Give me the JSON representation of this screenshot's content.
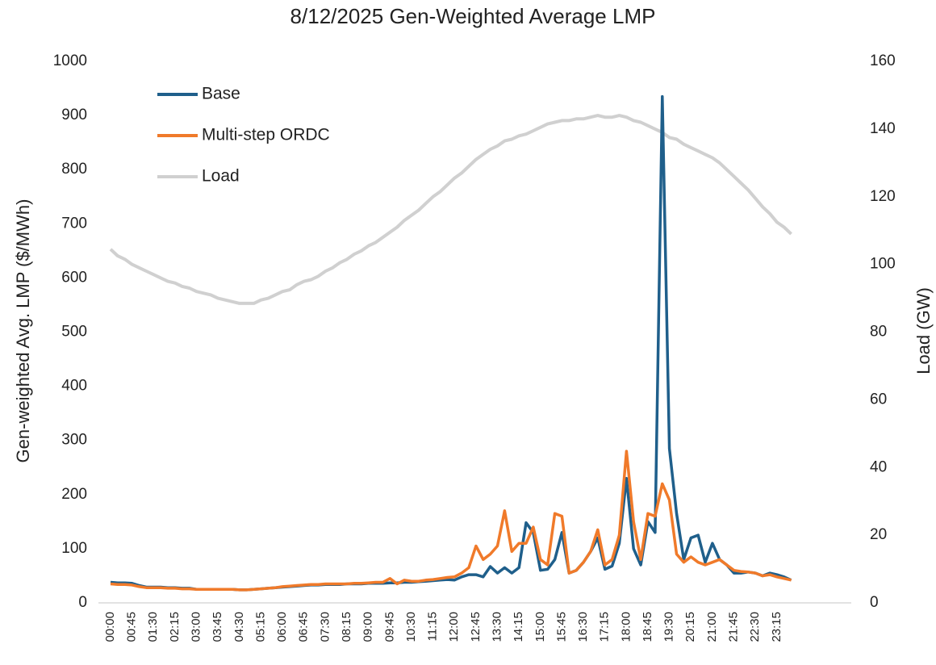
{
  "chart_data": {
    "type": "line",
    "title": "8/12/2025 Gen-Weighted Average LMP",
    "y_label": "Gen-weighted Avg. LMP ($/MWh)",
    "y2_label": "Load (GW)",
    "categories": [
      "00:00",
      null,
      null,
      "00:45",
      null,
      null,
      "01:30",
      null,
      null,
      "02:15",
      null,
      null,
      "03:00",
      null,
      null,
      "03:45",
      null,
      null,
      "04:30",
      null,
      null,
      "05:15",
      null,
      null,
      "06:00",
      null,
      null,
      "06:45",
      null,
      null,
      "07:30",
      null,
      null,
      "08:15",
      null,
      null,
      "09:00",
      null,
      null,
      "09:45",
      null,
      null,
      "10:30",
      null,
      null,
      "11:15",
      null,
      null,
      "12:00",
      null,
      null,
      "12:45",
      null,
      null,
      "13:30",
      null,
      null,
      "14:15",
      null,
      null,
      "15:00",
      null,
      null,
      "15:45",
      null,
      null,
      "16:30",
      null,
      null,
      "17:15",
      null,
      null,
      "18:00",
      null,
      null,
      "18:45",
      null,
      null,
      "19:30",
      null,
      null,
      "20:15",
      null,
      null,
      "21:00",
      null,
      null,
      "21:45",
      null,
      null,
      "22:30",
      null,
      null,
      "23:15",
      null,
      null
    ],
    "series": [
      {
        "name": "Load",
        "color": "#d0d0d0",
        "axis": "y2",
        "values": [
          104.5,
          102.5,
          101.5,
          100,
          99,
          98,
          97,
          96,
          95,
          94.5,
          93.5,
          93,
          92,
          91.5,
          91,
          90,
          89.5,
          89,
          88.5,
          88.5,
          88.5,
          89.5,
          90,
          91,
          92,
          92.5,
          94,
          95,
          95.5,
          96.5,
          98,
          99,
          100.5,
          101.5,
          103,
          104,
          105.5,
          106.5,
          108,
          109.5,
          111,
          113,
          114.5,
          116,
          118,
          120,
          121.5,
          123.5,
          125.5,
          127,
          129,
          131,
          132.5,
          134,
          135,
          136.5,
          137,
          138,
          138.5,
          139.5,
          140.5,
          141.5,
          142,
          142.5,
          142.5,
          143,
          143,
          143.5,
          144,
          143.5,
          143.5,
          144,
          143.5,
          142.5,
          142,
          141,
          140,
          139,
          137.5,
          137,
          135.5,
          134.5,
          133.5,
          132.5,
          131.5,
          130,
          128,
          126,
          124,
          122,
          119.5,
          117,
          115,
          112.5,
          111,
          109
        ]
      },
      {
        "name": "Base",
        "color": "#1f5f8b",
        "values": [
          38,
          37,
          37,
          36,
          32,
          29,
          29,
          29,
          28,
          28,
          27,
          27,
          25,
          25,
          25,
          25,
          25,
          25,
          24,
          24,
          25,
          26,
          27,
          28,
          29,
          30,
          31,
          32,
          33,
          33,
          34,
          34,
          34,
          35,
          35,
          35,
          36,
          36,
          36,
          37,
          37,
          38,
          38,
          39,
          40,
          41,
          42,
          43,
          42,
          48,
          52,
          52,
          48,
          67,
          55,
          65,
          55,
          65,
          148,
          130,
          60,
          62,
          80,
          130,
          55,
          60,
          75,
          95,
          120,
          62,
          68,
          110,
          230,
          100,
          70,
          150,
          130,
          935,
          285,
          165,
          80,
          120,
          125,
          75,
          110,
          80,
          70,
          55,
          55,
          57,
          55,
          50,
          55,
          52,
          48,
          42
        ]
      },
      {
        "name": "Multi-step ORDC",
        "color": "#f07a2a",
        "values": [
          35,
          34,
          34,
          33,
          30,
          28,
          28,
          28,
          27,
          27,
          26,
          26,
          25,
          25,
          25,
          25,
          25,
          25,
          24,
          24,
          25,
          26,
          27,
          28,
          30,
          31,
          32,
          33,
          34,
          34,
          35,
          35,
          35,
          35,
          36,
          36,
          37,
          38,
          38,
          45,
          35,
          42,
          40,
          40,
          42,
          43,
          45,
          47,
          48,
          55,
          65,
          105,
          80,
          90,
          105,
          170,
          95,
          110,
          110,
          140,
          80,
          70,
          165,
          160,
          55,
          60,
          75,
          95,
          135,
          70,
          80,
          125,
          280,
          150,
          80,
          165,
          160,
          220,
          190,
          90,
          75,
          85,
          75,
          70,
          75,
          80,
          70,
          60,
          58,
          57,
          55,
          50,
          52,
          48,
          45,
          42
        ]
      }
    ],
    "ylim": [
      0,
      1000
    ],
    "yticks": [
      0,
      100,
      200,
      300,
      400,
      500,
      600,
      700,
      800,
      900,
      1000
    ],
    "y2lim": [
      0,
      160
    ],
    "y2ticks": [
      0,
      20,
      40,
      60,
      80,
      100,
      120,
      140,
      160
    ],
    "legend": "upper-left",
    "grid": false
  }
}
